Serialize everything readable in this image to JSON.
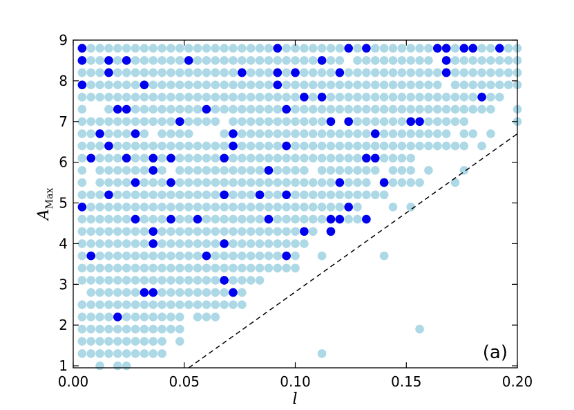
{
  "chart_data": {
    "type": "scatter",
    "xlabel": "l",
    "ylabel": "A",
    "ylabel_subscript": "Max",
    "xlim": [
      0.0,
      0.2
    ],
    "ylim": [
      0.95,
      9.0
    ],
    "xticks": [
      "0.00",
      "0.05",
      "0.10",
      "0.15",
      "0.20"
    ],
    "yticks": [
      "1",
      "2",
      "3",
      "4",
      "5",
      "6",
      "7",
      "8",
      "9"
    ],
    "xtick_values": [
      0.0,
      0.05,
      0.1,
      0.15,
      0.2
    ],
    "ytick_values": [
      1,
      2,
      3,
      4,
      5,
      6,
      7,
      8,
      9
    ],
    "grid": false,
    "annotation": "(a)",
    "reference_line": {
      "style": "dashed",
      "color": "#000000",
      "points": [
        [
          0.052,
          0.95
        ],
        [
          0.2,
          6.7
        ]
      ]
    },
    "colors": {
      "light": "#add8e6",
      "dark": "#0000ee"
    },
    "series": [
      {
        "color": "light",
        "rows": [
          {
            "y": 8.8,
            "x": [
              [
                0.004,
                0.028
              ],
              [
                0.032,
                0.048
              ],
              [
                0.052,
                0.064
              ],
              [
                0.068,
                0.08
              ],
              [
                0.084,
                0.128
              ],
              [
                0.136,
                0.14
              ],
              [
                0.144,
                0.2
              ]
            ]
          },
          {
            "y": 8.5,
            "x": [
              [
                0.004,
                0.12
              ],
              [
                0.128,
                0.16
              ],
              [
                0.168,
                0.2
              ]
            ]
          },
          {
            "y": 8.2,
            "x": [
              [
                0.004,
                0.18
              ],
              [
                0.184,
                0.2
              ]
            ]
          },
          {
            "y": 7.9,
            "x": [
              [
                0.004,
                0.164
              ],
              [
                0.172,
                0.2
              ]
            ]
          },
          {
            "y": 7.6,
            "x": [
              [
                0.004,
                0.192
              ]
            ]
          },
          {
            "y": 7.3,
            "x": [
              [
                0.004,
                0.004
              ],
              [
                0.016,
                0.036
              ],
              [
                0.04,
                0.068
              ],
              [
                0.072,
                0.112
              ],
              [
                0.116,
                0.176
              ],
              [
                0.18,
                0.188
              ],
              [
                0.2,
                0.2
              ]
            ]
          },
          {
            "y": 7.0,
            "x": [
              [
                0.004,
                0.064
              ],
              [
                0.072,
                0.116
              ],
              [
                0.124,
                0.164
              ],
              [
                0.168,
                0.176
              ],
              [
                0.2,
                0.2
              ]
            ]
          },
          {
            "y": 6.7,
            "x": [
              [
                0.004,
                0.016
              ],
              [
                0.02,
                0.024
              ],
              [
                0.028,
                0.032
              ],
              [
                0.04,
                0.052
              ],
              [
                0.068,
                0.116
              ],
              [
                0.12,
                0.144
              ],
              [
                0.148,
                0.168
              ],
              [
                0.176,
                0.18
              ],
              [
                0.188,
                0.188
              ]
            ]
          },
          {
            "y": 6.4,
            "x": [
              [
                0.004,
                0.012
              ],
              [
                0.016,
                0.02
              ],
              [
                0.024,
                0.052
              ],
              [
                0.056,
                0.12
              ],
              [
                0.124,
                0.176
              ],
              [
                0.184,
                0.184
              ]
            ]
          },
          {
            "y": 6.1,
            "x": [
              [
                0.004,
                0.064
              ],
              [
                0.068,
                0.152
              ]
            ]
          },
          {
            "y": 5.8,
            "x": [
              [
                0.004,
                0.004
              ],
              [
                0.012,
                0.04
              ],
              [
                0.048,
                0.104
              ],
              [
                0.112,
                0.136
              ],
              [
                0.144,
                0.152
              ],
              [
                0.16,
                0.16
              ],
              [
                0.176,
                0.176
              ]
            ]
          },
          {
            "y": 5.5,
            "x": [
              [
                0.004,
                0.004
              ],
              [
                0.012,
                0.028
              ],
              [
                0.032,
                0.132
              ],
              [
                0.14,
                0.148
              ],
              [
                0.152,
                0.156
              ],
              [
                0.172,
                0.172
              ]
            ]
          },
          {
            "y": 5.2,
            "x": [
              [
                0.004,
                0.012
              ],
              [
                0.02,
                0.14
              ]
            ]
          },
          {
            "y": 4.9,
            "x": [
              [
                0.004,
                0.128
              ],
              [
                0.144,
                0.144
              ],
              [
                0.152,
                0.152
              ]
            ]
          },
          {
            "y": 4.6,
            "x": [
              [
                0.004,
                0.132
              ]
            ]
          },
          {
            "y": 4.3,
            "x": [
              [
                0.004,
                0.032
              ],
              [
                0.04,
                0.108
              ],
              [
                0.116,
                0.116
              ]
            ]
          },
          {
            "y": 4.0,
            "x": [
              [
                0.004,
                0.104
              ]
            ]
          },
          {
            "y": 3.7,
            "x": [
              [
                0.004,
                0.1
              ],
              [
                0.112,
                0.112
              ],
              [
                0.14,
                0.14
              ]
            ]
          },
          {
            "y": 3.4,
            "x": [
              [
                0.004,
                0.1
              ]
            ]
          },
          {
            "y": 3.1,
            "x": [
              [
                0.004,
                0.084
              ]
            ]
          },
          {
            "y": 2.8,
            "x": [
              [
                0.008,
                0.076
              ]
            ]
          },
          {
            "y": 2.5,
            "x": [
              [
                0.004,
                0.076
              ]
            ]
          },
          {
            "y": 2.2,
            "x": [
              [
                0.004,
                0.048
              ],
              [
                0.056,
                0.064
              ]
            ]
          },
          {
            "y": 1.9,
            "x": [
              [
                0.004,
                0.048
              ],
              [
                0.156,
                0.156
              ]
            ]
          },
          {
            "y": 1.6,
            "x": [
              [
                0.004,
                0.04
              ],
              [
                0.048,
                0.048
              ]
            ]
          },
          {
            "y": 1.3,
            "x": [
              [
                0.004,
                0.036
              ],
              [
                0.04,
                0.04
              ],
              [
                0.112,
                0.112
              ]
            ]
          },
          {
            "y": 1.0,
            "x": [
              [
                0.012,
                0.012
              ],
              [
                0.02,
                0.024
              ]
            ]
          }
        ]
      },
      {
        "color": "dark",
        "points": [
          [
            0.004,
            8.8
          ],
          [
            0.092,
            8.8
          ],
          [
            0.124,
            8.8
          ],
          [
            0.132,
            8.8
          ],
          [
            0.164,
            8.8
          ],
          [
            0.168,
            8.8
          ],
          [
            0.176,
            8.8
          ],
          [
            0.18,
            8.8
          ],
          [
            0.192,
            8.8
          ],
          [
            0.004,
            8.5
          ],
          [
            0.016,
            8.5
          ],
          [
            0.024,
            8.5
          ],
          [
            0.052,
            8.5
          ],
          [
            0.112,
            8.5
          ],
          [
            0.168,
            8.5
          ],
          [
            0.016,
            8.2
          ],
          [
            0.076,
            8.2
          ],
          [
            0.092,
            8.2
          ],
          [
            0.1,
            8.2
          ],
          [
            0.12,
            8.2
          ],
          [
            0.168,
            8.2
          ],
          [
            0.004,
            7.9
          ],
          [
            0.032,
            7.9
          ],
          [
            0.092,
            7.9
          ],
          [
            0.104,
            7.6
          ],
          [
            0.112,
            7.6
          ],
          [
            0.184,
            7.6
          ],
          [
            0.02,
            7.3
          ],
          [
            0.024,
            7.3
          ],
          [
            0.06,
            7.3
          ],
          [
            0.096,
            7.3
          ],
          [
            0.048,
            7.0
          ],
          [
            0.116,
            7.0
          ],
          [
            0.124,
            7.0
          ],
          [
            0.152,
            7.0
          ],
          [
            0.156,
            7.0
          ],
          [
            0.012,
            6.7
          ],
          [
            0.028,
            6.7
          ],
          [
            0.072,
            6.7
          ],
          [
            0.136,
            6.7
          ],
          [
            0.016,
            6.4
          ],
          [
            0.072,
            6.4
          ],
          [
            0.096,
            6.4
          ],
          [
            0.008,
            6.1
          ],
          [
            0.024,
            6.1
          ],
          [
            0.036,
            6.1
          ],
          [
            0.044,
            6.1
          ],
          [
            0.068,
            6.1
          ],
          [
            0.132,
            6.1
          ],
          [
            0.136,
            6.1
          ],
          [
            0.036,
            5.8
          ],
          [
            0.088,
            5.8
          ],
          [
            0.028,
            5.5
          ],
          [
            0.044,
            5.5
          ],
          [
            0.12,
            5.5
          ],
          [
            0.14,
            5.5
          ],
          [
            0.016,
            5.2
          ],
          [
            0.068,
            5.2
          ],
          [
            0.084,
            5.2
          ],
          [
            0.096,
            5.2
          ],
          [
            0.004,
            4.9
          ],
          [
            0.124,
            4.9
          ],
          [
            0.028,
            4.6
          ],
          [
            0.044,
            4.6
          ],
          [
            0.056,
            4.6
          ],
          [
            0.088,
            4.6
          ],
          [
            0.116,
            4.6
          ],
          [
            0.12,
            4.6
          ],
          [
            0.132,
            4.6
          ],
          [
            0.036,
            4.3
          ],
          [
            0.104,
            4.3
          ],
          [
            0.116,
            4.3
          ],
          [
            0.036,
            4.0
          ],
          [
            0.068,
            4.0
          ],
          [
            0.008,
            3.7
          ],
          [
            0.06,
            3.7
          ],
          [
            0.096,
            3.7
          ],
          [
            0.068,
            3.1
          ],
          [
            0.032,
            2.8
          ],
          [
            0.036,
            2.8
          ],
          [
            0.072,
            2.8
          ],
          [
            0.02,
            2.2
          ]
        ]
      }
    ]
  }
}
